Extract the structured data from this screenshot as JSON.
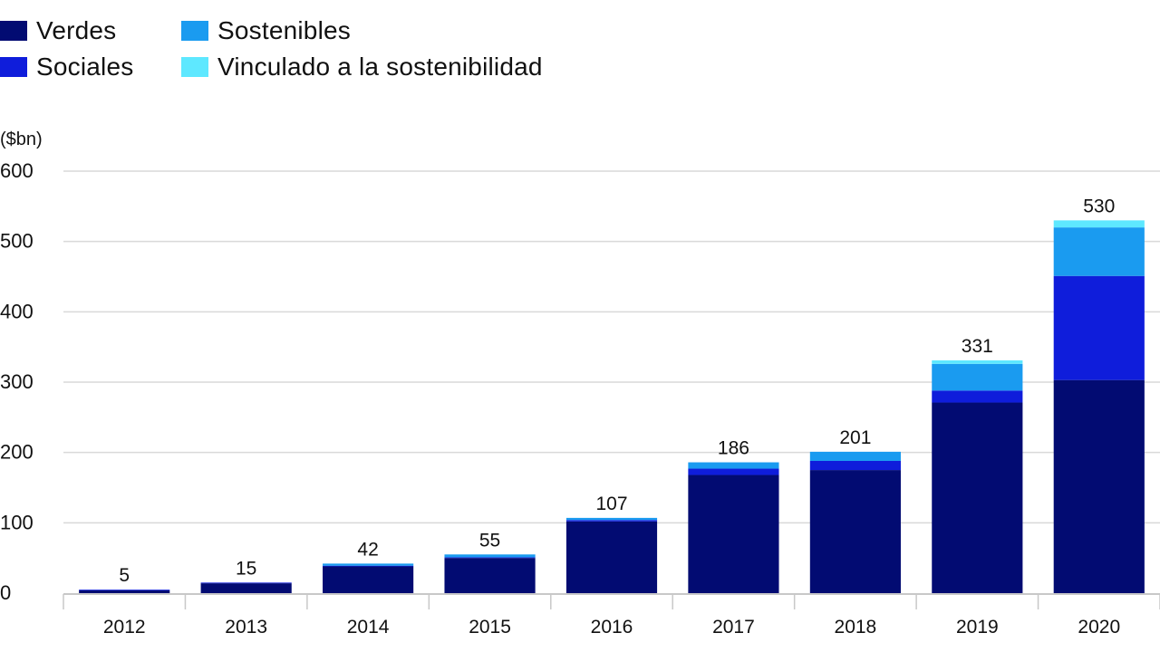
{
  "legend": {
    "items": [
      {
        "label": "Verdes",
        "color": "#020b72"
      },
      {
        "label": "Sostenibles",
        "color": "#1a9bf0"
      },
      {
        "label": "Sociales",
        "color": "#0f1ddb"
      },
      {
        "label": "Vinculado a la sostenibilidad",
        "color": "#5ee8ff"
      }
    ]
  },
  "chart_data": {
    "type": "bar",
    "stacked": true,
    "unit_label": "($bn)",
    "categories": [
      "2012",
      "2013",
      "2014",
      "2015",
      "2016",
      "2017",
      "2018",
      "2019",
      "2020"
    ],
    "series": [
      {
        "name": "Verdes",
        "color": "#020b72",
        "values": [
          4,
          14,
          38,
          50,
          102,
          168,
          175,
          271,
          303
        ]
      },
      {
        "name": "Sociales",
        "color": "#0f1ddb",
        "values": [
          1,
          1,
          1,
          1,
          2,
          9,
          13,
          17,
          148
        ]
      },
      {
        "name": "Sostenibles",
        "color": "#1a9bf0",
        "values": [
          0,
          0,
          3,
          4,
          3,
          9,
          13,
          38,
          69
        ]
      },
      {
        "name": "Vinculado a la sostenibilidad",
        "color": "#5ee8ff",
        "values": [
          0,
          0,
          0,
          0,
          0,
          0,
          0,
          5,
          10
        ]
      }
    ],
    "totals": [
      5,
      15,
      42,
      55,
      107,
      186,
      201,
      331,
      530
    ],
    "y_ticks": [
      0,
      100,
      200,
      300,
      400,
      500,
      600
    ],
    "ylim": [
      0,
      600
    ],
    "grid": true,
    "legend_position": "top-left"
  }
}
